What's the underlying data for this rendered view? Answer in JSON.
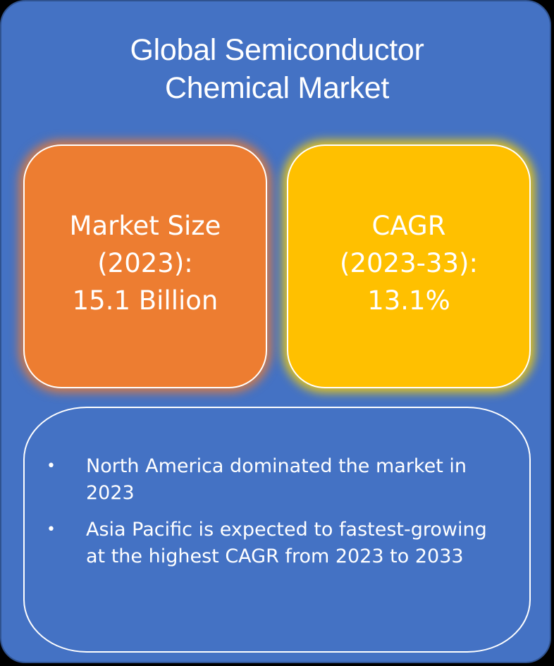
{
  "title": {
    "line1": "Global Semiconductor",
    "line2": "Chemical Market"
  },
  "market_size": {
    "line1": "Market Size",
    "line2": "(2023):",
    "line3": "15.1 Billion"
  },
  "cagr": {
    "line1": "CAGR",
    "line2": "(2023-33):",
    "line3": "13.1%"
  },
  "bullets": [
    {
      "marker": "•",
      "text": "North America dominated the market in 2023"
    },
    {
      "marker": "•",
      "text": "Asia Pacific is expected to fastest-growing at the highest CAGR from 2023 to 2033"
    }
  ],
  "colors": {
    "background": "#4472c4",
    "market_card": "#ed7d31",
    "cagr_card": "#ffc000",
    "text": "#ffffff"
  }
}
